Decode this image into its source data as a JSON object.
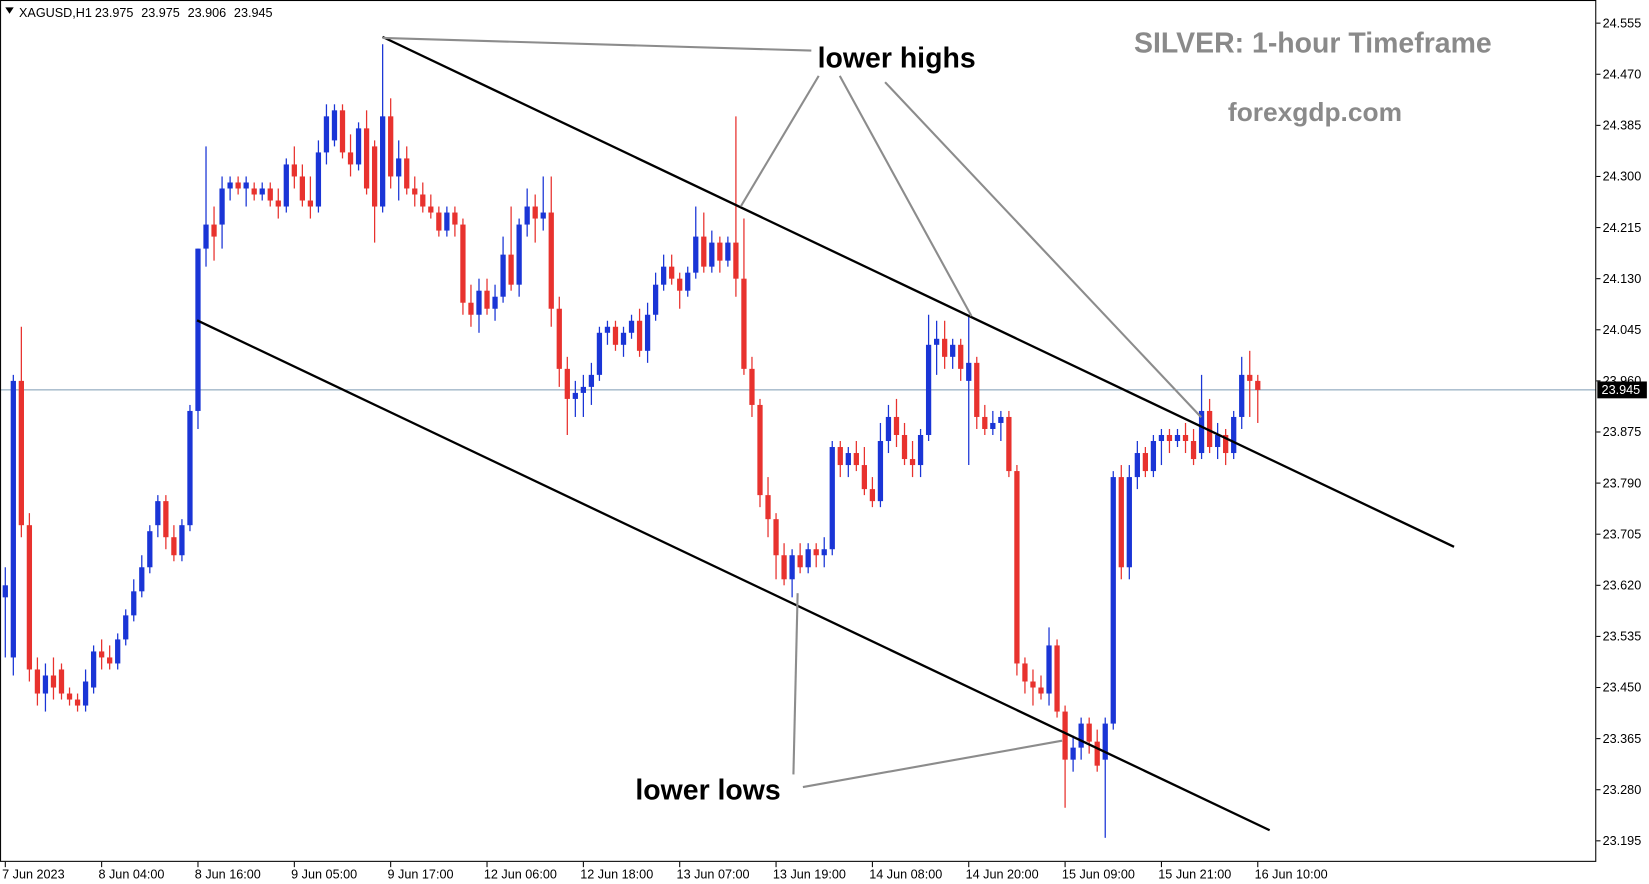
{
  "chart_data": {
    "type": "candlestick",
    "title": "SILVER: 1-hour Timeframe",
    "subtitle": "forexgdp.com",
    "symbol": "XAGUSD,H1",
    "ohlc": [
      23.975,
      23.975,
      23.906,
      23.945
    ],
    "annotations": [
      "lower highs",
      "lower lows"
    ],
    "up_color": "#1a35d6",
    "down_color": "#e8322e",
    "ylim": [
      23.16,
      24.59
    ],
    "yticks": [
      24.555,
      {
        "value": 24.47,
        "label": "24.470"
      },
      24.385,
      {
        "value": 24.3,
        "label": "24.300"
      },
      24.215,
      {
        "value": 24.13,
        "label": "24.130"
      },
      24.045,
      {
        "value": 23.96,
        "label": "23.960"
      },
      23.875,
      {
        "value": 23.79,
        "label": "23.790"
      },
      23.705,
      {
        "value": 23.62,
        "label": "23.620"
      },
      23.535,
      {
        "value": 23.45,
        "label": "23.450"
      },
      23.365,
      {
        "value": 23.28,
        "label": "23.280"
      },
      23.195
    ],
    "current_price": 23.945,
    "xticks": [
      {
        "value": 0,
        "label": "7 Jun 2023"
      },
      {
        "value": 12,
        "label": "8 Jun 04:00"
      },
      {
        "value": 24,
        "label": "8 Jun 16:00"
      },
      {
        "value": 36,
        "label": "9 Jun 05:00"
      },
      {
        "value": 48,
        "label": "9 Jun 17:00"
      },
      {
        "value": 60,
        "label": "12 Jun 06:00"
      },
      {
        "value": 72,
        "label": "12 Jun 18:00"
      },
      {
        "value": 84,
        "label": "13 Jun 07:00"
      },
      {
        "value": 96,
        "label": "13 Jun 19:00"
      },
      {
        "value": 108,
        "label": "14 Jun 08:00"
      },
      {
        "value": 120,
        "label": "14 Jun 20:00"
      },
      {
        "value": 132,
        "label": "15 Jun 09:00"
      },
      {
        "value": 144,
        "label": "15 Jun 21:00"
      },
      {
        "value": 156,
        "label": "16 Jun 10:00"
      }
    ],
    "candles": [
      [
        23.6,
        23.65,
        23.5,
        23.62
      ],
      [
        23.5,
        23.97,
        23.47,
        23.96
      ],
      [
        23.96,
        24.05,
        23.7,
        23.72
      ],
      [
        23.72,
        23.74,
        23.46,
        23.48
      ],
      [
        23.48,
        23.5,
        23.42,
        23.44
      ],
      [
        23.44,
        23.49,
        23.41,
        23.47
      ],
      [
        23.47,
        23.5,
        23.43,
        23.45
      ],
      [
        23.48,
        23.49,
        23.43,
        23.44
      ],
      [
        23.44,
        23.45,
        23.42,
        23.43
      ],
      [
        23.43,
        23.44,
        23.41,
        23.42
      ],
      [
        23.42,
        23.48,
        23.41,
        23.46
      ],
      [
        23.45,
        23.52,
        23.44,
        23.51
      ],
      [
        23.51,
        23.53,
        23.48,
        23.5
      ],
      [
        23.5,
        23.52,
        23.48,
        23.49
      ],
      [
        23.49,
        23.54,
        23.48,
        23.53
      ],
      [
        23.53,
        23.58,
        23.52,
        23.57
      ],
      [
        23.57,
        23.63,
        23.56,
        23.61
      ],
      [
        23.61,
        23.67,
        23.6,
        23.65
      ],
      [
        23.65,
        23.72,
        23.64,
        23.71
      ],
      [
        23.72,
        23.77,
        23.7,
        23.76
      ],
      [
        23.76,
        23.77,
        23.68,
        23.7
      ],
      [
        23.7,
        23.72,
        23.66,
        23.67
      ],
      [
        23.67,
        23.73,
        23.66,
        23.72
      ],
      [
        23.72,
        23.92,
        23.71,
        23.91
      ],
      [
        23.91,
        24.18,
        23.88,
        24.18
      ],
      [
        24.18,
        24.35,
        24.15,
        24.22
      ],
      [
        24.22,
        24.25,
        24.16,
        24.2
      ],
      [
        24.22,
        24.3,
        24.18,
        24.28
      ],
      [
        24.28,
        24.3,
        24.26,
        24.29
      ],
      [
        24.29,
        24.3,
        24.27,
        24.28
      ],
      [
        24.28,
        24.3,
        24.25,
        24.29
      ],
      [
        24.28,
        24.29,
        24.26,
        24.27
      ],
      [
        24.27,
        24.29,
        24.26,
        24.28
      ],
      [
        24.28,
        24.29,
        24.25,
        24.26
      ],
      [
        24.26,
        24.28,
        24.23,
        24.25
      ],
      [
        24.25,
        24.33,
        24.24,
        24.32
      ],
      [
        24.32,
        24.35,
        24.28,
        24.3
      ],
      [
        24.3,
        24.32,
        24.25,
        24.26
      ],
      [
        24.26,
        24.3,
        24.23,
        24.25
      ],
      [
        24.25,
        24.36,
        24.24,
        24.34
      ],
      [
        24.34,
        24.42,
        24.32,
        24.4
      ],
      [
        24.36,
        24.42,
        24.35,
        24.41
      ],
      [
        24.41,
        24.42,
        24.33,
        24.34
      ],
      [
        24.34,
        24.37,
        24.3,
        24.32
      ],
      [
        24.32,
        24.39,
        24.31,
        24.38
      ],
      [
        24.38,
        24.41,
        24.27,
        24.28
      ],
      [
        24.35,
        24.36,
        24.19,
        24.25
      ],
      [
        24.25,
        24.52,
        24.24,
        24.4
      ],
      [
        24.4,
        24.43,
        24.28,
        24.3
      ],
      [
        24.3,
        24.36,
        24.26,
        24.33
      ],
      [
        24.33,
        24.35,
        24.27,
        24.28
      ],
      [
        24.28,
        24.3,
        24.25,
        24.27
      ],
      [
        24.27,
        24.29,
        24.24,
        24.25
      ],
      [
        24.25,
        24.27,
        24.23,
        24.24
      ],
      [
        24.24,
        24.25,
        24.2,
        24.21
      ],
      [
        24.21,
        24.25,
        24.2,
        24.24
      ],
      [
        24.24,
        24.25,
        24.2,
        24.22
      ],
      [
        24.22,
        24.23,
        24.07,
        24.09
      ],
      [
        24.09,
        24.12,
        24.05,
        24.07
      ],
      [
        24.07,
        24.13,
        24.04,
        24.11
      ],
      [
        24.11,
        24.13,
        24.07,
        24.08
      ],
      [
        24.08,
        24.12,
        24.06,
        24.1
      ],
      [
        24.1,
        24.2,
        24.09,
        24.17
      ],
      [
        24.17,
        24.25,
        24.11,
        24.12
      ],
      [
        24.12,
        24.23,
        24.1,
        24.22
      ],
      [
        24.22,
        24.28,
        24.2,
        24.25
      ],
      [
        24.25,
        24.27,
        24.19,
        24.23
      ],
      [
        24.23,
        24.3,
        24.21,
        24.24
      ],
      [
        24.24,
        24.3,
        24.05,
        24.08
      ],
      [
        24.08,
        24.1,
        23.95,
        23.98
      ],
      [
        23.98,
        24.0,
        23.87,
        23.93
      ],
      [
        23.93,
        23.96,
        23.9,
        23.94
      ],
      [
        23.94,
        23.97,
        23.9,
        23.95
      ],
      [
        23.95,
        23.99,
        23.92,
        23.97
      ],
      [
        23.97,
        24.05,
        23.96,
        24.04
      ],
      [
        24.04,
        24.06,
        24.02,
        24.05
      ],
      [
        24.05,
        24.06,
        24.01,
        24.02
      ],
      [
        24.02,
        24.05,
        24.0,
        24.04
      ],
      [
        24.04,
        24.07,
        24.03,
        24.06
      ],
      [
        24.06,
        24.08,
        24.0,
        24.01
      ],
      [
        24.01,
        24.09,
        23.99,
        24.07
      ],
      [
        24.07,
        24.14,
        24.06,
        24.12
      ],
      [
        24.12,
        24.17,
        24.11,
        24.15
      ],
      [
        24.15,
        24.17,
        24.12,
        24.13
      ],
      [
        24.13,
        24.14,
        24.08,
        24.11
      ],
      [
        24.11,
        24.15,
        24.1,
        24.14
      ],
      [
        24.14,
        24.25,
        24.13,
        24.2
      ],
      [
        24.2,
        24.24,
        24.14,
        24.15
      ],
      [
        24.15,
        24.21,
        24.14,
        24.19
      ],
      [
        24.19,
        24.2,
        24.14,
        24.16
      ],
      [
        24.16,
        24.2,
        24.15,
        24.19
      ],
      [
        24.19,
        24.4,
        24.1,
        24.13
      ],
      [
        24.13,
        24.23,
        23.97,
        23.98
      ],
      [
        23.98,
        24.0,
        23.9,
        23.92
      ],
      [
        23.92,
        23.93,
        23.75,
        23.77
      ],
      [
        23.77,
        23.8,
        23.7,
        23.73
      ],
      [
        23.73,
        23.74,
        23.63,
        23.67
      ],
      [
        23.67,
        23.69,
        23.62,
        23.63
      ],
      [
        23.63,
        23.68,
        23.6,
        23.67
      ],
      [
        23.67,
        23.69,
        23.64,
        23.65
      ],
      [
        23.65,
        23.69,
        23.64,
        23.68
      ],
      [
        23.68,
        23.69,
        23.65,
        23.67
      ],
      [
        23.67,
        23.7,
        23.65,
        23.68
      ],
      [
        23.68,
        23.86,
        23.67,
        23.85
      ],
      [
        23.85,
        23.86,
        23.8,
        23.82
      ],
      [
        23.82,
        23.85,
        23.8,
        23.84
      ],
      [
        23.84,
        23.86,
        23.81,
        23.82
      ],
      [
        23.82,
        23.85,
        23.77,
        23.78
      ],
      [
        23.78,
        23.8,
        23.75,
        23.76
      ],
      [
        23.76,
        23.89,
        23.75,
        23.86
      ],
      [
        23.86,
        23.92,
        23.84,
        23.9
      ],
      [
        23.9,
        23.93,
        23.85,
        23.87
      ],
      [
        23.87,
        23.89,
        23.82,
        23.83
      ],
      [
        23.83,
        23.86,
        23.8,
        23.82
      ],
      [
        23.82,
        23.88,
        23.8,
        23.87
      ],
      [
        23.87,
        24.07,
        23.86,
        24.02
      ],
      [
        24.02,
        24.06,
        23.97,
        24.03
      ],
      [
        24.03,
        24.06,
        23.98,
        24.0
      ],
      [
        24.0,
        24.03,
        23.98,
        24.02
      ],
      [
        24.02,
        24.03,
        23.96,
        23.98
      ],
      [
        23.96,
        24.07,
        23.82,
        23.99
      ],
      [
        23.99,
        24.0,
        23.88,
        23.9
      ],
      [
        23.9,
        23.92,
        23.87,
        23.88
      ],
      [
        23.88,
        23.91,
        23.87,
        23.89
      ],
      [
        23.89,
        23.91,
        23.86,
        23.9
      ],
      [
        23.9,
        23.91,
        23.8,
        23.81
      ],
      [
        23.81,
        23.82,
        23.47,
        23.49
      ],
      [
        23.49,
        23.5,
        23.44,
        23.46
      ],
      [
        23.46,
        23.48,
        23.42,
        23.45
      ],
      [
        23.45,
        23.47,
        23.43,
        23.44
      ],
      [
        23.44,
        23.55,
        23.42,
        23.52
      ],
      [
        23.52,
        23.53,
        23.4,
        23.41
      ],
      [
        23.41,
        23.42,
        23.25,
        23.33
      ],
      [
        23.33,
        23.37,
        23.31,
        23.35
      ],
      [
        23.35,
        23.4,
        23.33,
        23.39
      ],
      [
        23.39,
        23.4,
        23.34,
        23.36
      ],
      [
        23.36,
        23.38,
        23.31,
        23.32
      ],
      [
        23.33,
        23.4,
        23.2,
        23.39
      ],
      [
        23.39,
        23.81,
        23.38,
        23.8
      ],
      [
        23.8,
        23.82,
        23.63,
        23.65
      ],
      [
        23.65,
        23.82,
        23.63,
        23.8
      ],
      [
        23.8,
        23.86,
        23.78,
        23.84
      ],
      [
        23.84,
        23.85,
        23.8,
        23.81
      ],
      [
        23.81,
        23.87,
        23.8,
        23.86
      ],
      [
        23.86,
        23.88,
        23.82,
        23.87
      ],
      [
        23.87,
        23.88,
        23.84,
        23.86
      ],
      [
        23.86,
        23.88,
        23.85,
        23.87
      ],
      [
        23.87,
        23.89,
        23.84,
        23.86
      ],
      [
        23.86,
        23.88,
        23.82,
        23.83
      ],
      [
        23.84,
        23.97,
        23.83,
        23.91
      ],
      [
        23.91,
        23.93,
        23.84,
        23.85
      ],
      [
        23.85,
        23.89,
        23.83,
        23.87
      ],
      [
        23.87,
        23.88,
        23.82,
        23.84
      ],
      [
        23.84,
        23.91,
        23.83,
        23.9
      ],
      [
        23.9,
        24.0,
        23.88,
        23.97
      ],
      [
        23.97,
        24.01,
        23.9,
        23.96
      ],
      [
        23.96,
        23.97,
        23.89,
        23.945
      ]
    ]
  }
}
